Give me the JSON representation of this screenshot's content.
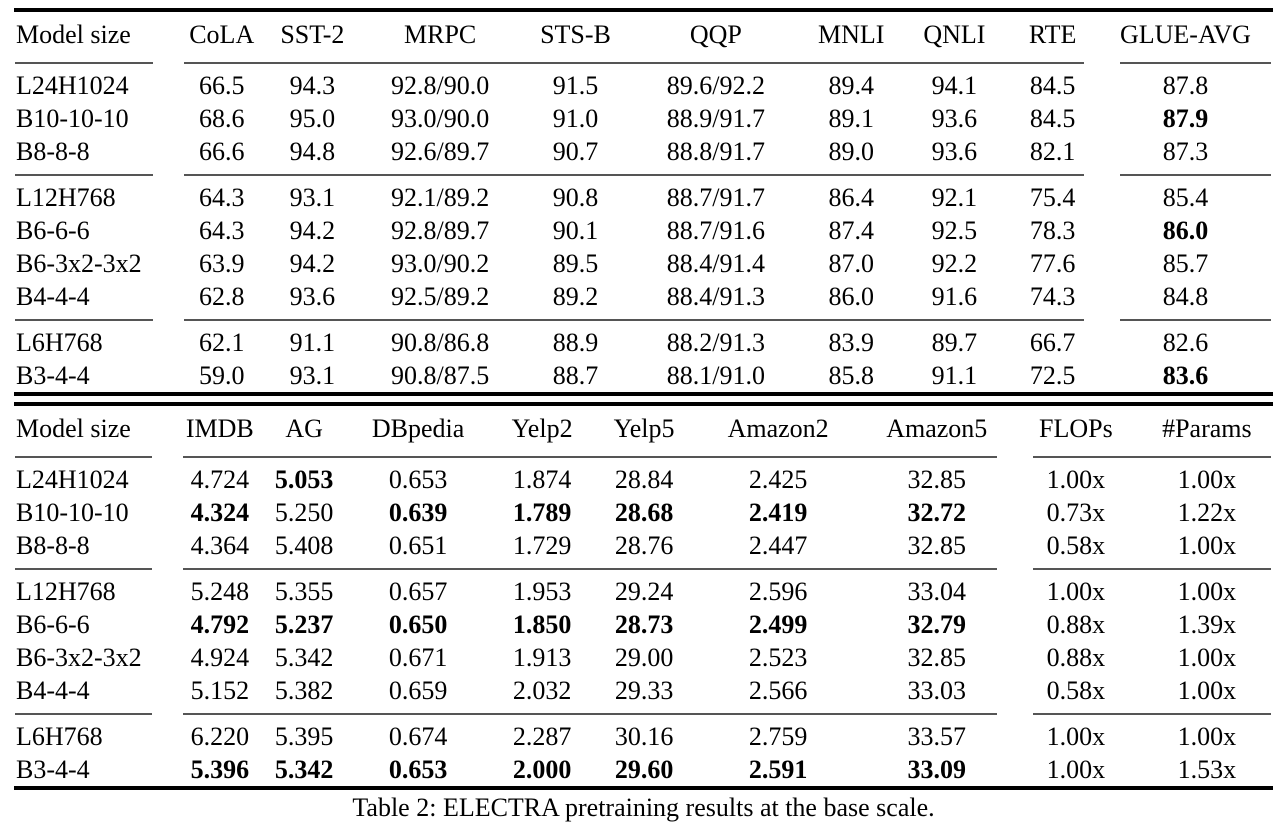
{
  "caption": "Table 2: ELECTRA pretraining results at the base scale.",
  "tables": [
    {
      "name": "glue-results",
      "columns": [
        "Model size",
        "CoLA",
        "SST-2",
        "MRPC",
        "STS-B",
        "QQP",
        "MNLI",
        "QNLI",
        "RTE",
        "GLUE-AVG"
      ],
      "groups": [
        [
          {
            "cells": [
              "L24H1024",
              "66.5",
              "94.3",
              "92.8/90.0",
              "91.5",
              "89.6/92.2",
              "89.4",
              "94.1",
              "84.5",
              "87.8"
            ],
            "bold": []
          },
          {
            "cells": [
              "B10-10-10",
              "68.6",
              "95.0",
              "93.0/90.0",
              "91.0",
              "88.9/91.7",
              "89.1",
              "93.6",
              "84.5",
              "87.9"
            ],
            "bold": [
              9
            ]
          },
          {
            "cells": [
              "B8-8-8",
              "66.6",
              "94.8",
              "92.6/89.7",
              "90.7",
              "88.8/91.7",
              "89.0",
              "93.6",
              "82.1",
              "87.3"
            ],
            "bold": []
          }
        ],
        [
          {
            "cells": [
              "L12H768",
              "64.3",
              "93.1",
              "92.1/89.2",
              "90.8",
              "88.7/91.7",
              "86.4",
              "92.1",
              "75.4",
              "85.4"
            ],
            "bold": []
          },
          {
            "cells": [
              "B6-6-6",
              "64.3",
              "94.2",
              "92.8/89.7",
              "90.1",
              "88.7/91.6",
              "87.4",
              "92.5",
              "78.3",
              "86.0"
            ],
            "bold": [
              9
            ]
          },
          {
            "cells": [
              "B6-3x2-3x2",
              "63.9",
              "94.2",
              "93.0/90.2",
              "89.5",
              "88.4/91.4",
              "87.0",
              "92.2",
              "77.6",
              "85.7"
            ],
            "bold": []
          },
          {
            "cells": [
              "B4-4-4",
              "62.8",
              "93.6",
              "92.5/89.2",
              "89.2",
              "88.4/91.3",
              "86.0",
              "91.6",
              "74.3",
              "84.8"
            ],
            "bold": []
          }
        ],
        [
          {
            "cells": [
              "L6H768",
              "62.1",
              "91.1",
              "90.8/86.8",
              "88.9",
              "88.2/91.3",
              "83.9",
              "89.7",
              "66.7",
              "82.6"
            ],
            "bold": []
          },
          {
            "cells": [
              "B3-4-4",
              "59.0",
              "93.1",
              "90.8/87.5",
              "88.7",
              "88.1/91.0",
              "85.8",
              "91.1",
              "72.5",
              "83.6"
            ],
            "bold": [
              9
            ]
          }
        ]
      ]
    },
    {
      "name": "classification-results",
      "columns": [
        "Model size",
        "IMDB",
        "AG",
        "DBpedia",
        "Yelp2",
        "Yelp5",
        "Amazon2",
        "Amazon5",
        "FLOPs",
        "#Params"
      ],
      "groups": [
        [
          {
            "cells": [
              "L24H1024",
              "4.724",
              "5.053",
              "0.653",
              "1.874",
              "28.84",
              "2.425",
              "32.85",
              "1.00x",
              "1.00x"
            ],
            "bold": [
              2
            ]
          },
          {
            "cells": [
              "B10-10-10",
              "4.324",
              "5.250",
              "0.639",
              "1.789",
              "28.68",
              "2.419",
              "32.72",
              "0.73x",
              "1.22x"
            ],
            "bold": [
              1,
              3,
              4,
              5,
              6,
              7
            ]
          },
          {
            "cells": [
              "B8-8-8",
              "4.364",
              "5.408",
              "0.651",
              "1.729",
              "28.76",
              "2.447",
              "32.85",
              "0.58x",
              "1.00x"
            ],
            "bold": []
          }
        ],
        [
          {
            "cells": [
              "L12H768",
              "5.248",
              "5.355",
              "0.657",
              "1.953",
              "29.24",
              "2.596",
              "33.04",
              "1.00x",
              "1.00x"
            ],
            "bold": []
          },
          {
            "cells": [
              "B6-6-6",
              "4.792",
              "5.237",
              "0.650",
              "1.850",
              "28.73",
              "2.499",
              "32.79",
              "0.88x",
              "1.39x"
            ],
            "bold": [
              1,
              2,
              3,
              4,
              5,
              6,
              7
            ]
          },
          {
            "cells": [
              "B6-3x2-3x2",
              "4.924",
              "5.342",
              "0.671",
              "1.913",
              "29.00",
              "2.523",
              "32.85",
              "0.88x",
              "1.00x"
            ],
            "bold": []
          },
          {
            "cells": [
              "B4-4-4",
              "5.152",
              "5.382",
              "0.659",
              "2.032",
              "29.33",
              "2.566",
              "33.03",
              "0.58x",
              "1.00x"
            ],
            "bold": []
          }
        ],
        [
          {
            "cells": [
              "L6H768",
              "6.220",
              "5.395",
              "0.674",
              "2.287",
              "30.16",
              "2.759",
              "33.57",
              "1.00x",
              "1.00x"
            ],
            "bold": []
          },
          {
            "cells": [
              "B3-4-4",
              "5.396",
              "5.342",
              "0.653",
              "2.000",
              "29.60",
              "2.591",
              "33.09",
              "1.00x",
              "1.53x"
            ],
            "bold": [
              1,
              2,
              3,
              4,
              5,
              6,
              7
            ]
          }
        ]
      ]
    }
  ]
}
